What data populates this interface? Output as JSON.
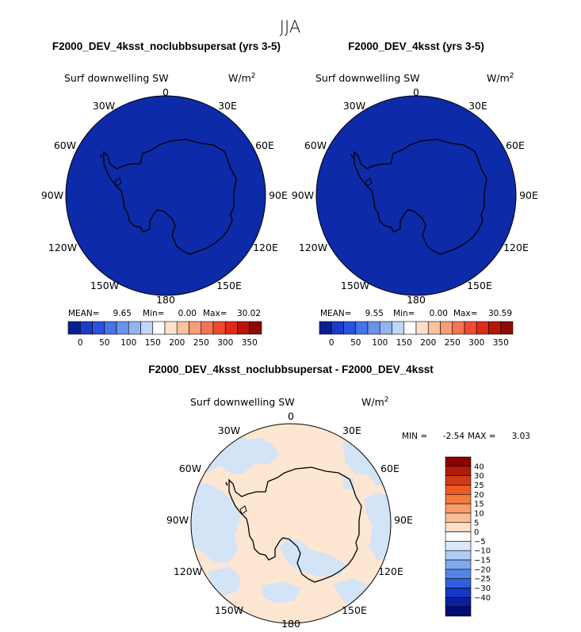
{
  "figure": {
    "season": "JJA"
  },
  "chart_data": [
    {
      "type": "heatmap",
      "projection": "south-polar-stereographic",
      "title": "F2000_DEV_4ksst_noclubbsupersat (yrs 3-5)",
      "variable": "Surf downwelling SW",
      "units": "W/m",
      "units_exp": "2",
      "lon_labels": [
        "0",
        "30E",
        "60E",
        "90E",
        "120E",
        "150E",
        "180",
        "150W",
        "120W",
        "90W",
        "60W",
        "30W"
      ],
      "stats": {
        "mean_label": "MEAN=",
        "mean": "9.65",
        "min_label": "Min=",
        "min": "0.00",
        "max_label": "Max=",
        "max": "30.02"
      },
      "field_color": "#0d2aa8",
      "colorbar": {
        "colors": [
          "#0a1f8f",
          "#1a3cc8",
          "#2952e0",
          "#4673e6",
          "#6a93ea",
          "#93b4ef",
          "#c2d7f5",
          "#ffffff",
          "#fde0cc",
          "#fbc2a0",
          "#f99d78",
          "#f57355",
          "#ef4a32",
          "#dd2b18",
          "#b81508",
          "#8b0a05"
        ],
        "ticks": [
          "0",
          "50",
          "100",
          "150",
          "200",
          "250",
          "300",
          "350"
        ]
      }
    },
    {
      "type": "heatmap",
      "projection": "south-polar-stereographic",
      "title": "F2000_DEV_4ksst (yrs 3-5)",
      "variable": "Surf downwelling SW",
      "units": "W/m",
      "units_exp": "2",
      "lon_labels": [
        "0",
        "30E",
        "60E",
        "90E",
        "120E",
        "150E",
        "180",
        "150W",
        "120W",
        "90W",
        "60W",
        "30W"
      ],
      "stats": {
        "mean_label": "MEAN=",
        "mean": "9.55",
        "min_label": "Min=",
        "min": "0.00",
        "max_label": "Max=",
        "max": "30.59"
      },
      "field_color": "#0d2aa8",
      "colorbar": {
        "colors": [
          "#0a1f8f",
          "#1a3cc8",
          "#2952e0",
          "#4673e6",
          "#6a93ea",
          "#93b4ef",
          "#c2d7f5",
          "#ffffff",
          "#fde0cc",
          "#fbc2a0",
          "#f99d78",
          "#f57355",
          "#ef4a32",
          "#dd2b18",
          "#b81508",
          "#8b0a05"
        ],
        "ticks": [
          "0",
          "50",
          "100",
          "150",
          "200",
          "250",
          "300",
          "350"
        ]
      }
    },
    {
      "type": "heatmap",
      "projection": "south-polar-stereographic",
      "title": "F2000_DEV_4ksst_noclubbsupersat - F2000_DEV_4ksst",
      "variable": "Surf downwelling SW",
      "units": "W/m",
      "units_exp": "2",
      "lon_labels": [
        "0",
        "30E",
        "60E",
        "90E",
        "120E",
        "150E",
        "180",
        "150W",
        "120W",
        "90W",
        "60W",
        "30W"
      ],
      "stats": {
        "min_label": "MIN =",
        "min": "-2.54",
        "max_label": "MAX =",
        "max": "3.03"
      },
      "colorbar": {
        "orientation": "vertical",
        "colors_top_to_bottom": [
          "#8b0000",
          "#b01c0a",
          "#d03a16",
          "#ee5a24",
          "#f57a40",
          "#f99d68",
          "#fbbd93",
          "#fde0c6",
          "#ffffff",
          "#dbe8fa",
          "#b0ccf4",
          "#80a8ee",
          "#5483e6",
          "#2e5fdc",
          "#1338c4",
          "#0c1e9c",
          "#000c6e"
        ],
        "ticks_top_to_bottom": [
          "40",
          "30",
          "25",
          "20",
          "15",
          "10",
          "5",
          "0",
          "−5",
          "−10",
          "−15",
          "−20",
          "−25",
          "−30",
          "−40"
        ],
        "dominant_positive_color": "#fde6d2",
        "dominant_negative_color": "#d3e4f6"
      }
    }
  ]
}
